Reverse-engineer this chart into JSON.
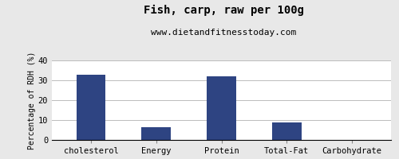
{
  "title": "Fish, carp, raw per 100g",
  "subtitle": "www.dietandfitnesstoday.com",
  "categories": [
    "cholesterol",
    "Energy",
    "Protein",
    "Total-Fat",
    "Carbohydrate"
  ],
  "values": [
    33.0,
    6.5,
    32.0,
    9.0,
    0.0
  ],
  "bar_color": "#2e4482",
  "ylabel": "Percentage of RDH (%)",
  "ylim": [
    0,
    40
  ],
  "yticks": [
    0,
    10,
    20,
    30,
    40
  ],
  "background_color": "#e8e8e8",
  "plot_bg_color": "#ffffff",
  "title_fontsize": 10,
  "subtitle_fontsize": 8,
  "axis_label_fontsize": 7,
  "tick_fontsize": 7.5
}
